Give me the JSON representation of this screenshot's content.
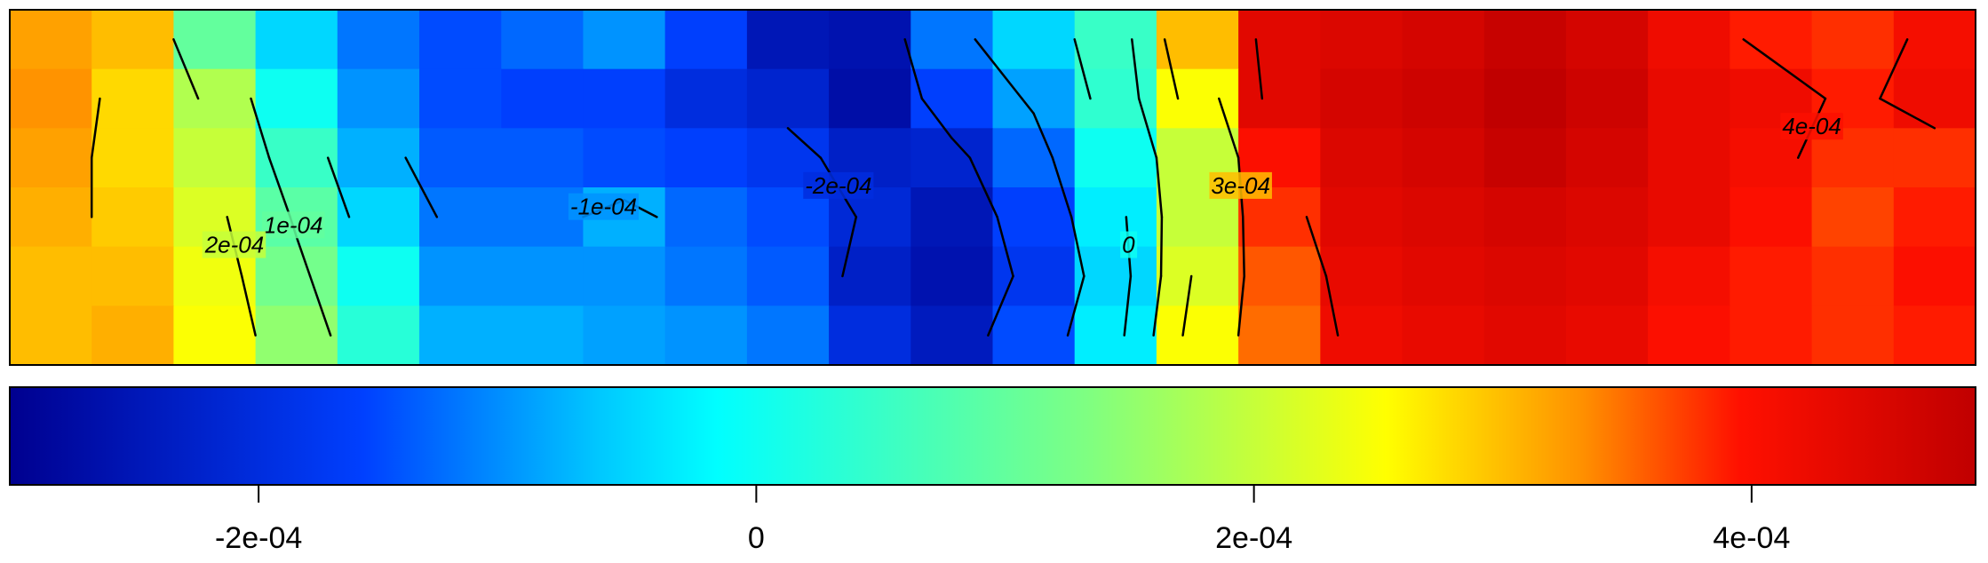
{
  "chart_data": {
    "type": "heatmap",
    "colorbar": {
      "lim": [
        -0.0003,
        0.00049
      ],
      "ticks": [
        {
          "value": -0.0002,
          "label": "-2e-04"
        },
        0,
        {
          "value": 0.0002,
          "label": "2e-04"
        },
        {
          "value": 0.0004,
          "label": "4e-04"
        }
      ]
    },
    "colorscale": [
      [
        0,
        "#00008f"
      ],
      [
        0.18,
        "#0040ff"
      ],
      [
        0.3,
        "#00c8ff"
      ],
      [
        0.36,
        "#00ffff"
      ],
      [
        0.55,
        "#80ff80"
      ],
      [
        0.7,
        "#ffff00"
      ],
      [
        0.8,
        "#ff9000"
      ],
      [
        0.88,
        "#ff1000"
      ],
      [
        1,
        "#c00000"
      ]
    ],
    "contour_levels": [
      {
        "value": -0.0002,
        "label": "-2e-04"
      },
      {
        "value": -0.0001,
        "label": "-1e-04"
      },
      {
        "value": 0,
        "label": "0"
      },
      {
        "value": 0.0001,
        "label": "1e-04"
      },
      {
        "value": 0.0002,
        "label": "2e-04"
      },
      {
        "value": 0.0003,
        "label": "3e-04"
      },
      {
        "value": 0.0004,
        "label": "4e-04"
      }
    ],
    "z": [
      [
        0.00032,
        0.0003,
        0.0001,
        -5e-05,
        -0.00012,
        -0.00015,
        -0.00013,
        -0.0001,
        -0.00016,
        -0.00025,
        -0.00026,
        -0.00012,
        -5e-05,
        5e-05,
        0.0003,
        0.00044,
        0.00045,
        0.00046,
        0.00048,
        0.00046,
        0.00042,
        0.00039,
        0.00038,
        0.00041
      ],
      [
        0.00033,
        0.00028,
        0.00018,
        0,
        -0.0001,
        -0.00015,
        -0.00016,
        -0.00016,
        -0.0002,
        -0.00022,
        -0.00027,
        -0.00016,
        -9e-05,
        4e-05,
        0.00025,
        0.00044,
        0.00046,
        0.00047,
        0.00049,
        0.00047,
        0.00043,
        0.00042,
        0.00039,
        0.00042
      ],
      [
        0.00032,
        0.00028,
        0.0002,
        5e-05,
        -8e-05,
        -0.00014,
        -0.00014,
        -0.00015,
        -0.00016,
        -0.00018,
        -0.00023,
        -0.00022,
        -0.00013,
        0,
        0.0002,
        0.0004,
        0.00045,
        0.00046,
        0.00048,
        0.00046,
        0.00043,
        0.00041,
        0.00038,
        0.00038
      ],
      [
        0.00031,
        0.00029,
        0.00022,
        9e-05,
        -5e-05,
        -0.00012,
        -0.00012,
        -8e-05,
        -0.00013,
        -0.00015,
        -0.00021,
        -0.00025,
        -0.00016,
        -3e-05,
        0.0002,
        0.00038,
        0.00044,
        0.00045,
        0.00046,
        0.00045,
        0.00043,
        0.0004,
        0.00037,
        0.00039
      ],
      [
        0.0003,
        0.0003,
        0.00024,
        0.00012,
        0,
        -0.0001,
        -0.0001,
        -0.0001,
        -0.00012,
        -0.00014,
        -0.00023,
        -0.00026,
        -0.00018,
        -5e-05,
        0.00022,
        0.00036,
        0.00043,
        0.00044,
        0.00045,
        0.00044,
        0.00041,
        0.00039,
        0.00038,
        0.0004
      ],
      [
        0.0003,
        0.00031,
        0.00025,
        0.00015,
        3e-05,
        -8e-05,
        -8e-05,
        -9e-05,
        -0.0001,
        -0.00012,
        -0.0002,
        -0.00024,
        -0.00015,
        -3e-05,
        0.00025,
        0.00035,
        0.00042,
        0.00043,
        0.00044,
        0.00043,
        0.0004,
        0.00039,
        0.00038,
        0.00039
      ]
    ]
  }
}
